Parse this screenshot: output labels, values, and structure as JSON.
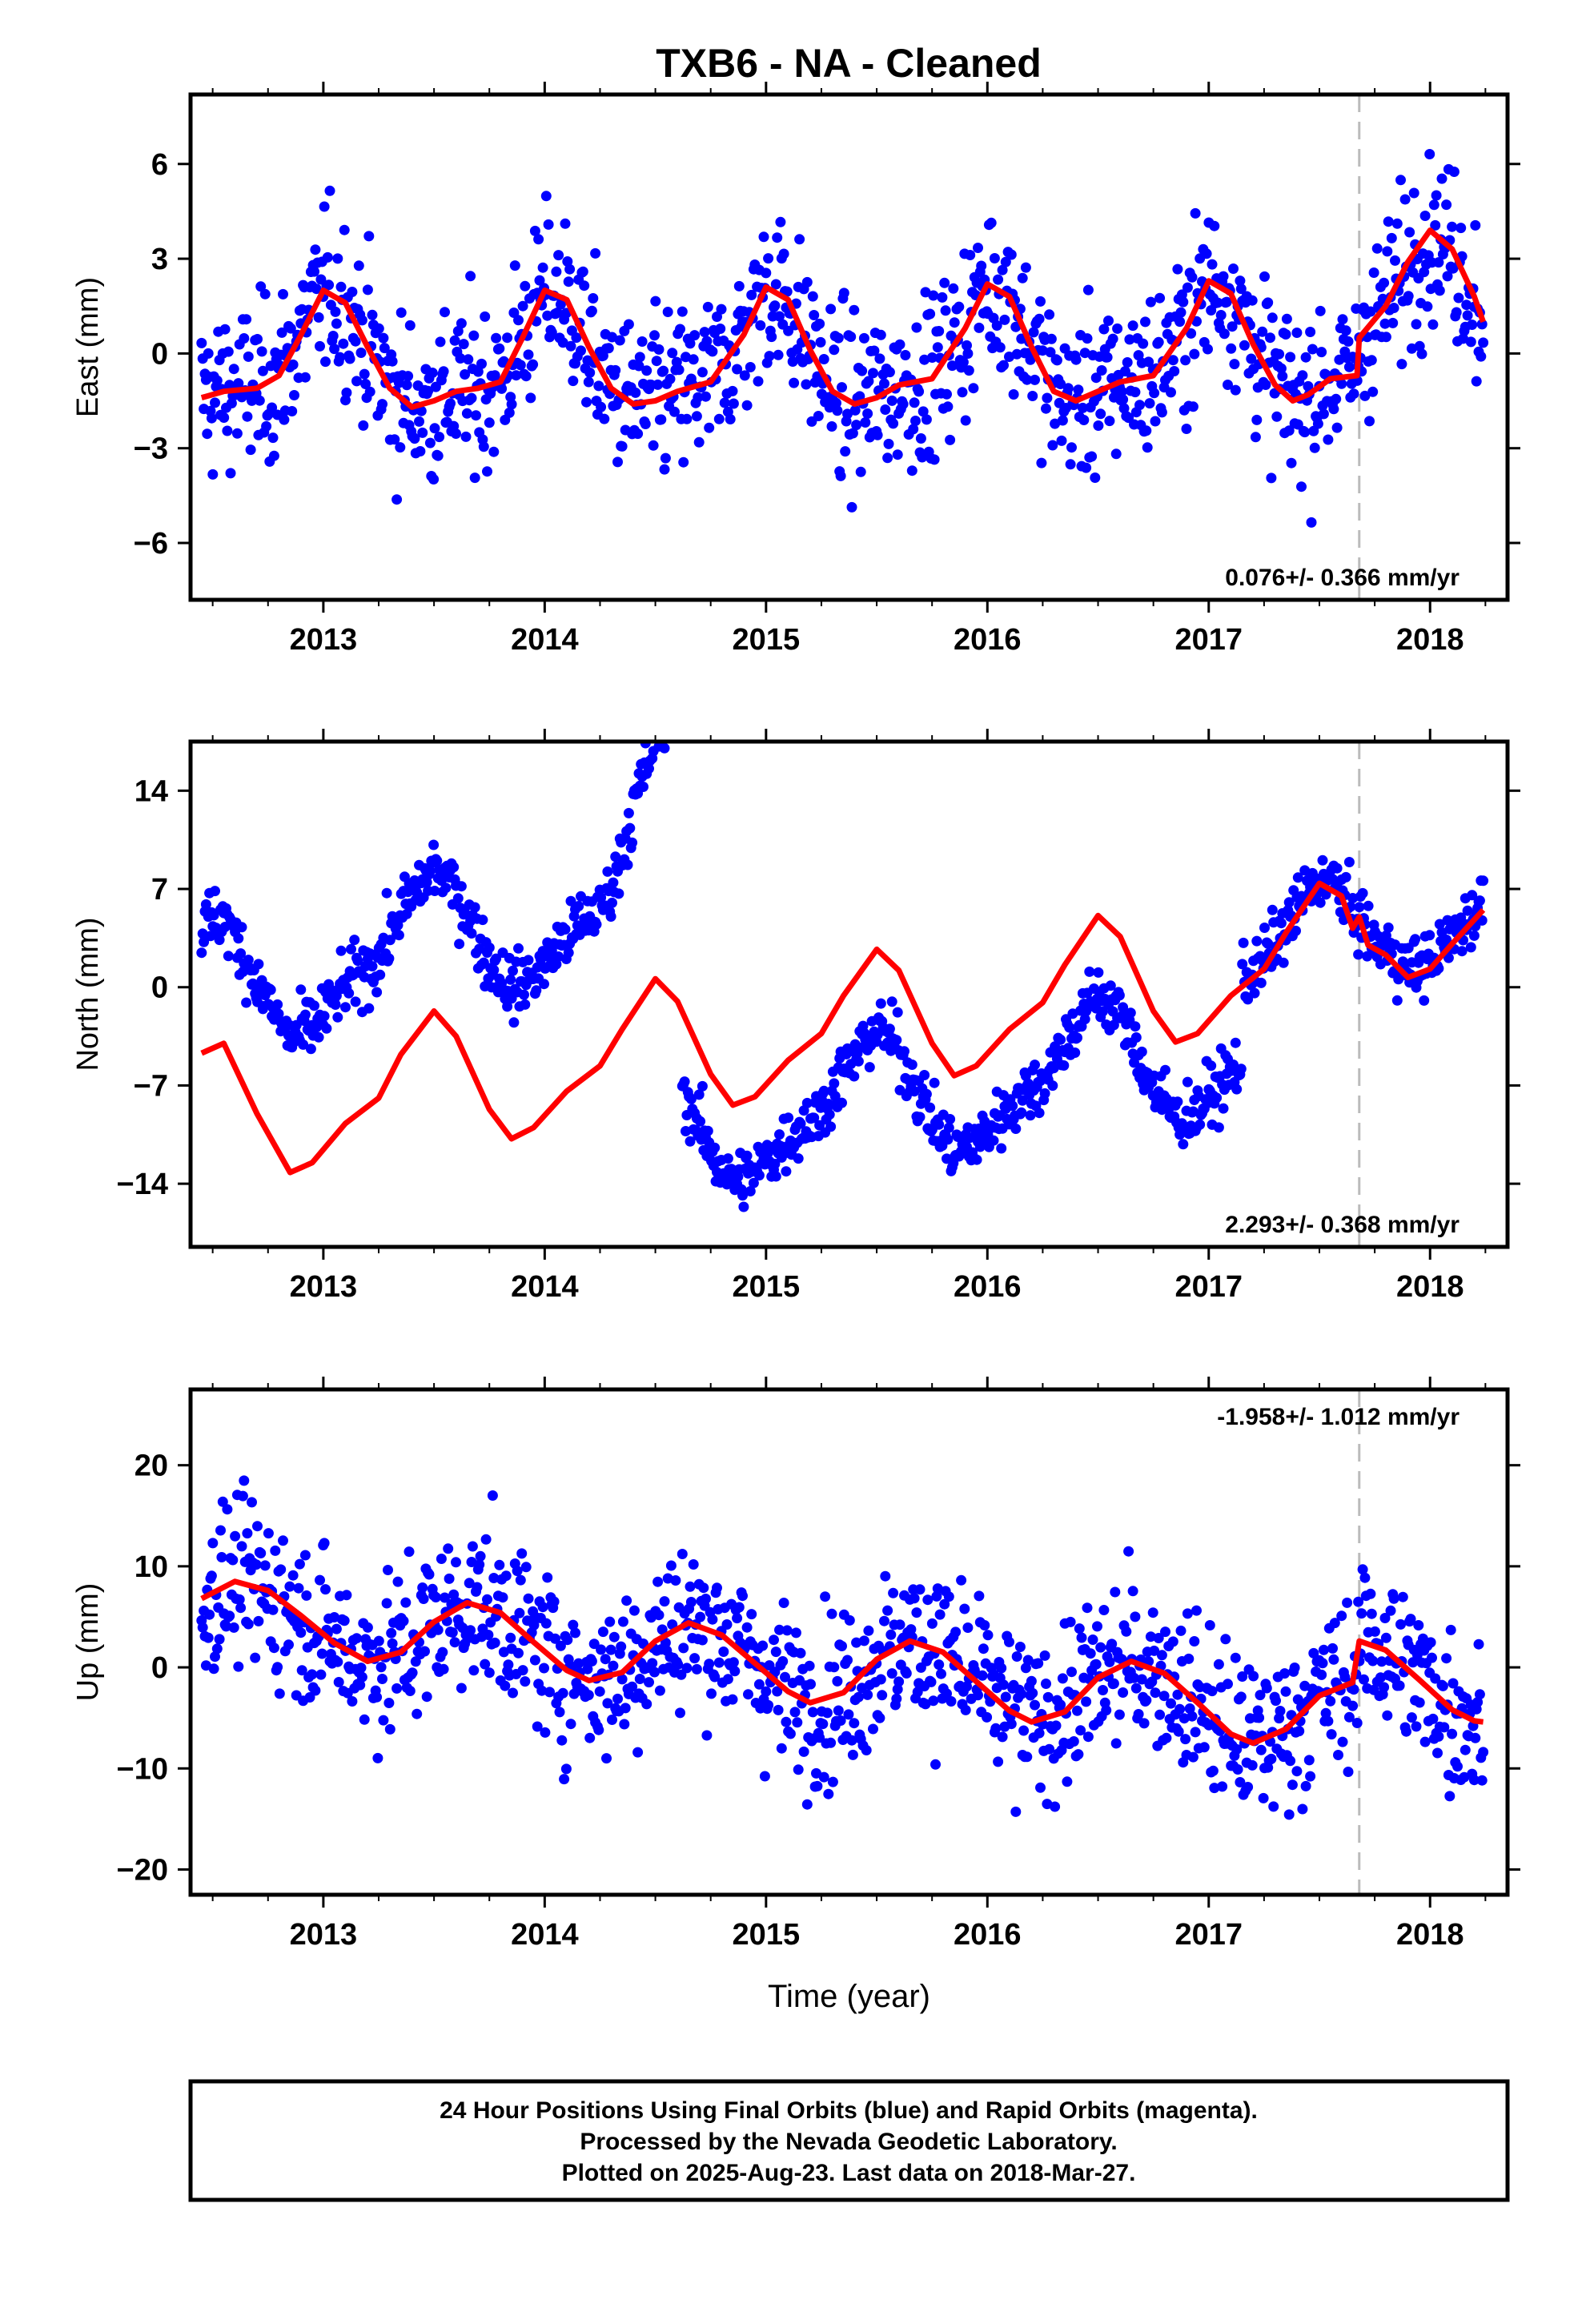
{
  "title": "TXB6  - NA - Cleaned",
  "footer": {
    "lines": [
      "24 Hour Positions Using Final Orbits (blue) and Rapid Orbits (magenta).",
      "Processed by the Nevada Geodetic Laboratory.",
      "Plotted on 2025-Aug-23. Last data on 2018-Mar-27."
    ]
  },
  "colors": {
    "points": "#0000ff",
    "model": "#ff0000",
    "event_line": "#bbbbbb"
  },
  "chart_data": [
    {
      "type": "scatter",
      "component": "east",
      "ylabel": "East (mm)",
      "xlabel": "",
      "xlim": [
        2012.4,
        2018.35
      ],
      "ylim": [
        -7.8,
        8.2
      ],
      "xticks": [
        "2013",
        "2014",
        "2015",
        "2016",
        "2017",
        "2018"
      ],
      "yticks": [
        "6",
        "3",
        "0",
        "−3",
        "−6"
      ],
      "ytick_values": [
        6,
        3,
        0,
        -3,
        -6
      ],
      "rate_label": "0.076+/- 0.366 mm/yr",
      "rate_position": "bottom-right",
      "event_line_x": 2017.68,
      "data_start": 2012.45,
      "data_end": 2018.24,
      "model_line": [
        [
          2012.45,
          -1.4
        ],
        [
          2012.55,
          -1.2
        ],
        [
          2012.7,
          -1.1
        ],
        [
          2012.8,
          -0.7
        ],
        [
          2012.9,
          0.6
        ],
        [
          2013.0,
          2.0
        ],
        [
          2013.1,
          1.6
        ],
        [
          2013.2,
          0.2
        ],
        [
          2013.3,
          -1.1
        ],
        [
          2013.4,
          -1.7
        ],
        [
          2013.5,
          -1.5
        ],
        [
          2013.6,
          -1.2
        ],
        [
          2013.7,
          -1.1
        ],
        [
          2013.8,
          -0.9
        ],
        [
          2013.9,
          0.5
        ],
        [
          2014.0,
          2.0
        ],
        [
          2014.1,
          1.7
        ],
        [
          2014.2,
          0.2
        ],
        [
          2014.3,
          -1.1
        ],
        [
          2014.4,
          -1.6
        ],
        [
          2014.5,
          -1.5
        ],
        [
          2014.6,
          -1.2
        ],
        [
          2014.75,
          -0.9
        ],
        [
          2014.9,
          0.6
        ],
        [
          2015.0,
          2.1
        ],
        [
          2015.1,
          1.7
        ],
        [
          2015.2,
          0.1
        ],
        [
          2015.3,
          -1.2
        ],
        [
          2015.4,
          -1.6
        ],
        [
          2015.5,
          -1.4
        ],
        [
          2015.6,
          -1.0
        ],
        [
          2015.75,
          -0.8
        ],
        [
          2015.9,
          0.8
        ],
        [
          2016.0,
          2.2
        ],
        [
          2016.1,
          1.8
        ],
        [
          2016.2,
          0.2
        ],
        [
          2016.3,
          -1.2
        ],
        [
          2016.4,
          -1.5
        ],
        [
          2016.5,
          -1.2
        ],
        [
          2016.6,
          -0.9
        ],
        [
          2016.75,
          -0.7
        ],
        [
          2016.9,
          0.8
        ],
        [
          2017.0,
          2.3
        ],
        [
          2017.1,
          1.9
        ],
        [
          2017.2,
          0.3
        ],
        [
          2017.3,
          -1.0
        ],
        [
          2017.38,
          -1.5
        ],
        [
          2017.45,
          -1.3
        ],
        [
          2017.55,
          -0.8
        ],
        [
          2017.67,
          -0.7
        ],
        [
          2017.68,
          0.5
        ],
        [
          2017.8,
          1.5
        ],
        [
          2017.9,
          2.9
        ],
        [
          2018.0,
          3.9
        ],
        [
          2018.1,
          3.3
        ],
        [
          2018.2,
          1.8
        ],
        [
          2018.24,
          1.0
        ]
      ]
    },
    {
      "type": "scatter",
      "component": "north",
      "ylabel": "North (mm)",
      "xlabel": "",
      "xlim": [
        2012.4,
        2018.35
      ],
      "ylim": [
        -18.5,
        17.5
      ],
      "xticks": [
        "2013",
        "2014",
        "2015",
        "2016",
        "2017",
        "2018"
      ],
      "yticks": [
        "14",
        "7",
        "0",
        "−7",
        "−14"
      ],
      "ytick_values": [
        14,
        7,
        0,
        -7,
        -14
      ],
      "rate_label": "2.293+/- 0.368 mm/yr",
      "rate_position": "bottom-right",
      "event_line_x": 2017.68,
      "data_start": 2012.45,
      "data_end": 2018.24,
      "data_gap": [
        2017.15,
        2017.15
      ],
      "model_line": [
        [
          2012.45,
          -4.7
        ],
        [
          2012.55,
          -4.0
        ],
        [
          2012.7,
          -9.0
        ],
        [
          2012.85,
          -13.2
        ],
        [
          2012.95,
          -12.5
        ],
        [
          2013.1,
          -9.7
        ],
        [
          2013.25,
          -7.9
        ],
        [
          2013.35,
          -4.8
        ],
        [
          2013.5,
          -1.7
        ],
        [
          2013.6,
          -3.5
        ],
        [
          2013.75,
          -8.7
        ],
        [
          2013.85,
          -10.8
        ],
        [
          2013.95,
          -10.0
        ],
        [
          2014.1,
          -7.4
        ],
        [
          2014.25,
          -5.6
        ],
        [
          2014.35,
          -3.0
        ],
        [
          2014.5,
          0.6
        ],
        [
          2014.6,
          -1.0
        ],
        [
          2014.75,
          -6.2
        ],
        [
          2014.85,
          -8.4
        ],
        [
          2014.95,
          -7.8
        ],
        [
          2015.1,
          -5.2
        ],
        [
          2015.25,
          -3.3
        ],
        [
          2015.35,
          -0.6
        ],
        [
          2015.5,
          2.7
        ],
        [
          2015.6,
          1.2
        ],
        [
          2015.75,
          -4.0
        ],
        [
          2015.85,
          -6.3
        ],
        [
          2015.95,
          -5.6
        ],
        [
          2016.1,
          -3.0
        ],
        [
          2016.25,
          -1.1
        ],
        [
          2016.35,
          1.6
        ],
        [
          2016.5,
          5.1
        ],
        [
          2016.6,
          3.6
        ],
        [
          2016.75,
          -1.7
        ],
        [
          2016.85,
          -3.9
        ],
        [
          2016.95,
          -3.3
        ],
        [
          2017.1,
          -0.6
        ],
        [
          2017.25,
          1.3
        ],
        [
          2017.35,
          3.9
        ],
        [
          2017.5,
          7.4
        ],
        [
          2017.6,
          6.5
        ],
        [
          2017.65,
          4.2
        ],
        [
          2017.68,
          5.0
        ],
        [
          2017.72,
          3.0
        ],
        [
          2017.8,
          2.3
        ],
        [
          2017.9,
          0.7
        ],
        [
          2018.0,
          1.3
        ],
        [
          2018.1,
          3.1
        ],
        [
          2018.24,
          5.5
        ]
      ]
    },
    {
      "type": "scatter",
      "component": "up",
      "ylabel": "Up (mm)",
      "xlabel": "Time (year)",
      "xlim": [
        2012.4,
        2018.35
      ],
      "ylim": [
        -22.5,
        27.5
      ],
      "xticks": [
        "2013",
        "2014",
        "2015",
        "2016",
        "2017",
        "2018"
      ],
      "yticks": [
        "20",
        "10",
        "0",
        "−10",
        "−20"
      ],
      "ytick_values": [
        20,
        10,
        0,
        -10,
        -20
      ],
      "rate_label": "-1.958+/- 1.012 mm/yr",
      "rate_position": "top-right",
      "event_line_x": 2017.68,
      "data_start": 2012.45,
      "data_end": 2018.24,
      "model_line": [
        [
          2012.45,
          6.8
        ],
        [
          2012.6,
          8.5
        ],
        [
          2012.75,
          7.6
        ],
        [
          2012.9,
          5.1
        ],
        [
          2013.05,
          2.4
        ],
        [
          2013.2,
          0.6
        ],
        [
          2013.35,
          1.5
        ],
        [
          2013.5,
          4.5
        ],
        [
          2013.65,
          6.4
        ],
        [
          2013.8,
          5.4
        ],
        [
          2013.95,
          2.5
        ],
        [
          2014.1,
          -0.3
        ],
        [
          2014.2,
          -1.3
        ],
        [
          2014.35,
          -0.5
        ],
        [
          2014.5,
          2.6
        ],
        [
          2014.65,
          4.4
        ],
        [
          2014.8,
          3.2
        ],
        [
          2014.95,
          0.4
        ],
        [
          2015.1,
          -2.4
        ],
        [
          2015.2,
          -3.5
        ],
        [
          2015.35,
          -2.5
        ],
        [
          2015.5,
          0.8
        ],
        [
          2015.65,
          2.6
        ],
        [
          2015.8,
          1.5
        ],
        [
          2015.95,
          -1.4
        ],
        [
          2016.1,
          -4.3
        ],
        [
          2016.2,
          -5.4
        ],
        [
          2016.35,
          -4.4
        ],
        [
          2016.5,
          -1.0
        ],
        [
          2016.65,
          0.6
        ],
        [
          2016.8,
          -0.6
        ],
        [
          2016.95,
          -3.5
        ],
        [
          2017.1,
          -6.6
        ],
        [
          2017.2,
          -7.5
        ],
        [
          2017.35,
          -6.1
        ],
        [
          2017.5,
          -2.8
        ],
        [
          2017.65,
          -1.5
        ],
        [
          2017.68,
          2.6
        ],
        [
          2017.8,
          1.7
        ],
        [
          2017.95,
          -1.2
        ],
        [
          2018.1,
          -4.2
        ],
        [
          2018.2,
          -5.3
        ],
        [
          2018.24,
          -5.4
        ]
      ]
    }
  ]
}
